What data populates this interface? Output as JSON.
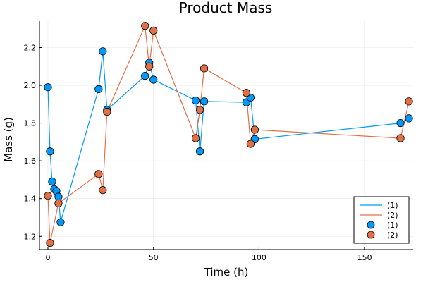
{
  "chart_data": {
    "type": "line",
    "title": "Product Mass",
    "xlabel": "Time (h)",
    "ylabel": "Mass (g)",
    "xlim": [
      -4,
      173
    ],
    "ylim": [
      1.13,
      2.34
    ],
    "x_ticks": [
      0,
      50,
      100,
      150
    ],
    "y_ticks": [
      1.2,
      1.4,
      1.6,
      1.8,
      2.0,
      2.2
    ],
    "x_tick_labels": [
      "0",
      "50",
      "100",
      "150"
    ],
    "y_tick_labels": [
      "1.2",
      "1.4",
      "1.6",
      "1.8",
      "2.0",
      "2.2"
    ],
    "grid": true,
    "legend_position": "bottom-right",
    "legend": [
      {
        "label": "(1)",
        "kind": "line",
        "color": "#009AFA"
      },
      {
        "label": "(2)",
        "kind": "line",
        "color": "#E36F47"
      },
      {
        "label": "(1)",
        "kind": "marker",
        "color": "#009AFA"
      },
      {
        "label": "(2)",
        "kind": "marker",
        "color": "#E36F47"
      }
    ],
    "series": [
      {
        "color": "#009AFA",
        "x": [
          0,
          1,
          2,
          3,
          4,
          5,
          6,
          24,
          26,
          28,
          46,
          48,
          50,
          70,
          72,
          74,
          94,
          96,
          98,
          167,
          171
        ],
        "y": [
          1.99,
          1.65,
          1.49,
          1.45,
          1.44,
          1.41,
          1.275,
          1.98,
          2.18,
          1.87,
          2.05,
          2.12,
          2.03,
          1.92,
          1.65,
          1.915,
          1.91,
          1.935,
          1.715,
          1.8,
          1.825
        ]
      },
      {
        "color": "#E36F47",
        "x": [
          0,
          1,
          5,
          24,
          26,
          28,
          46,
          48,
          50,
          70,
          72,
          74,
          94,
          96,
          98,
          167,
          171
        ],
        "y": [
          1.415,
          1.165,
          1.375,
          1.53,
          1.445,
          1.86,
          2.315,
          2.1,
          2.29,
          1.72,
          1.87,
          2.09,
          1.96,
          1.69,
          1.765,
          1.72,
          1.915
        ]
      }
    ]
  }
}
